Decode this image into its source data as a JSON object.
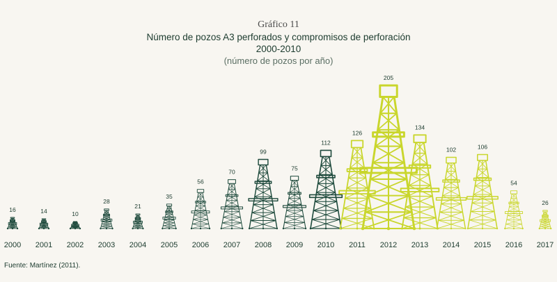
{
  "header": {
    "figure_label": "Gráfico 11",
    "title": "Número de pozos A3 perforados y compromisos de perforación",
    "subtitle": "2000-2010",
    "units": "(número de pozos por año)"
  },
  "source": "Fuente: Martínez (2011).",
  "colors": {
    "drilled": "#1e4a3c",
    "committed": "#c9d62c",
    "text": "#1c3b2e",
    "background": "#f8f6f1"
  },
  "chart_data": {
    "type": "bar",
    "title": "Número de pozos A3 perforados y compromisos de perforación",
    "categories": [
      "2000",
      "2001",
      "2002",
      "2003",
      "2004",
      "2005",
      "2006",
      "2007",
      "2008",
      "2009",
      "2010",
      "2011",
      "2012",
      "2013",
      "2014",
      "2015",
      "2016",
      "2017"
    ],
    "values": [
      16,
      14,
      10,
      28,
      21,
      35,
      56,
      70,
      99,
      75,
      112,
      126,
      205,
      134,
      102,
      106,
      54,
      26
    ],
    "bar_colors": [
      "#1e4a3c",
      "#1e4a3c",
      "#1e4a3c",
      "#1e4a3c",
      "#1e4a3c",
      "#1e4a3c",
      "#1e4a3c",
      "#1e4a3c",
      "#1e4a3c",
      "#1e4a3c",
      "#1e4a3c",
      "#c9d62c",
      "#c9d62c",
      "#c9d62c",
      "#c9d62c",
      "#c9d62c",
      "#c9d62c",
      "#c9d62c"
    ],
    "marker": "oil-derrick-icon",
    "data_labels": true,
    "grid": false
  }
}
